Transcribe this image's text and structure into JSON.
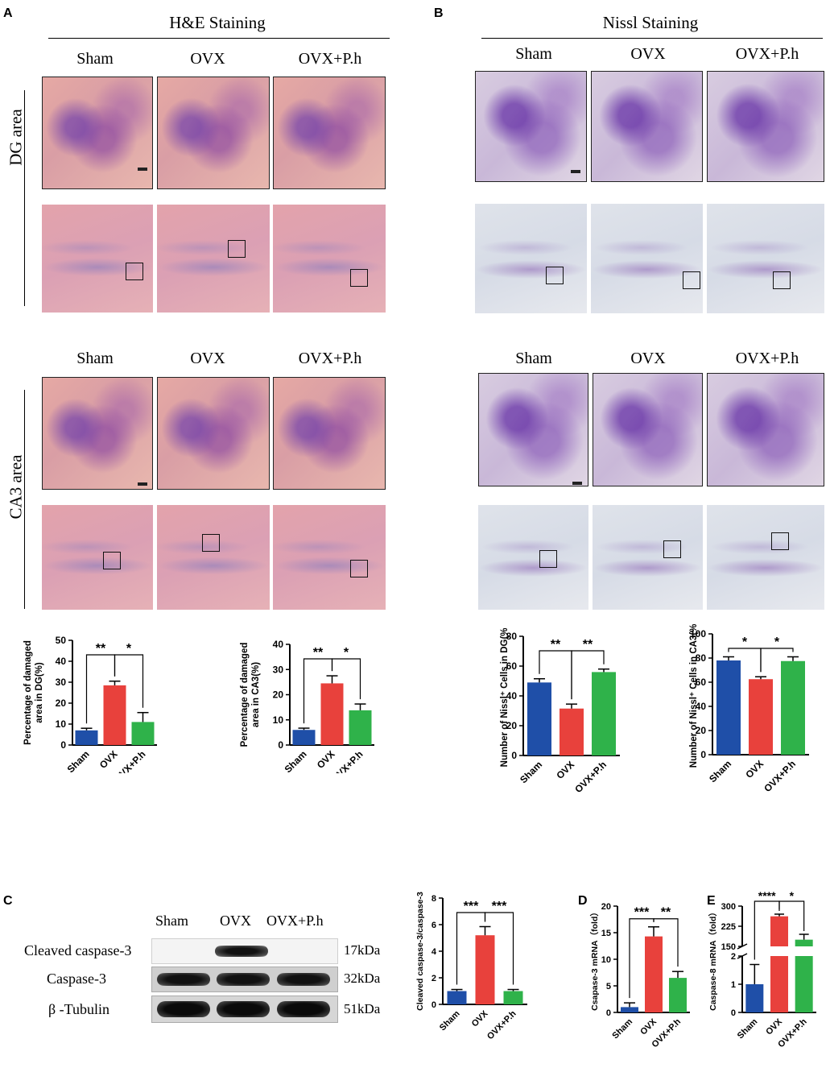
{
  "panels": {
    "A": "A",
    "B": "B",
    "C": "C",
    "D": "D",
    "E": "E"
  },
  "he": {
    "title": "H&E Staining",
    "groups": [
      "Sham",
      "OVX",
      "OVX+P.h"
    ],
    "row1_label": "DG area",
    "row2_label": "CA3 area"
  },
  "nissl": {
    "title": "Nissl Staining",
    "groups": [
      "Sham",
      "OVX",
      "OVX+P.h"
    ]
  },
  "blot": {
    "lanes": [
      "Sham",
      "OVX",
      "OVX+P.h"
    ],
    "rows": [
      {
        "label": "Cleaved caspase-3",
        "kda": "17kDa"
      },
      {
        "label": "Caspase-3",
        "kda": "32kDa"
      },
      {
        "label": "β -Tubulin",
        "kda": "51kDa"
      }
    ]
  },
  "colors": {
    "sham": "#1f4fa8",
    "ovx": "#e8413c",
    "oph": "#2fb24a"
  },
  "chart_data": [
    {
      "id": "he_dg",
      "type": "bar",
      "categories": [
        "Sham",
        "OVX",
        "OVX+P.h"
      ],
      "values": [
        7,
        28.5,
        11
      ],
      "errors": [
        1,
        2,
        4.5
      ],
      "ylabel": [
        "Percentage of damaged",
        "area in DG(%)"
      ],
      "ylim": [
        0,
        50
      ],
      "yticks": [
        "0",
        "10",
        "20",
        "30",
        "40",
        "50"
      ],
      "sig": [
        {
          "from": 0,
          "to": 1,
          "text": "**"
        },
        {
          "from": 1,
          "to": 2,
          "text": "*"
        }
      ]
    },
    {
      "id": "he_ca3",
      "type": "bar",
      "categories": [
        "Sham",
        "OVX",
        "OVX+P.h"
      ],
      "values": [
        6,
        24.5,
        13.8
      ],
      "errors": [
        0.7,
        3,
        2.5
      ],
      "ylabel": [
        "Percentage of damaged",
        "area in CA3(%)"
      ],
      "ylim": [
        0,
        40
      ],
      "yticks": [
        "0",
        "10",
        "20",
        "30",
        "40"
      ],
      "sig": [
        {
          "from": 0,
          "to": 1,
          "text": "**"
        },
        {
          "from": 1,
          "to": 2,
          "text": "*"
        }
      ]
    },
    {
      "id": "nissl_dg",
      "type": "bar",
      "categories": [
        "Sham",
        "OVX",
        "OVX+P.h"
      ],
      "values": [
        49,
        31.5,
        56
      ],
      "errors": [
        2.5,
        3,
        2
      ],
      "ylabel": [
        "Number of Nissl⁺ Cells in DG(%)"
      ],
      "ylim": [
        0,
        80
      ],
      "yticks": [
        "0",
        "20",
        "40",
        "60",
        "80"
      ],
      "sig": [
        {
          "from": 0,
          "to": 1,
          "text": "**"
        },
        {
          "from": 1,
          "to": 2,
          "text": "**"
        }
      ]
    },
    {
      "id": "nissl_ca3",
      "type": "bar",
      "categories": [
        "Sham",
        "OVX",
        "OVX+P.h"
      ],
      "values": [
        78,
        62.5,
        77.5
      ],
      "errors": [
        3,
        2,
        3.5
      ],
      "ylabel": [
        "Number of Nissl⁺ Cells in CA3(%)"
      ],
      "ylim": [
        0,
        100
      ],
      "yticks": [
        "0",
        "20",
        "40",
        "60",
        "80",
        "100"
      ],
      "sig": [
        {
          "from": 0,
          "to": 1,
          "text": "*"
        },
        {
          "from": 1,
          "to": 2,
          "text": "*"
        }
      ]
    },
    {
      "id": "cleaved",
      "type": "bar",
      "categories": [
        "Sham",
        "OVX",
        "OVX+P.h"
      ],
      "values": [
        1,
        5.2,
        1
      ],
      "errors": [
        0.12,
        0.65,
        0.12
      ],
      "ylabel": [
        "Cleaved caspase-3/caspase-3"
      ],
      "ylim": [
        0,
        8
      ],
      "yticks": [
        "0",
        "2",
        "4",
        "6",
        "8"
      ],
      "sig": [
        {
          "from": 0,
          "to": 1,
          "text": "***"
        },
        {
          "from": 1,
          "to": 2,
          "text": "***"
        }
      ]
    },
    {
      "id": "casp3_mrna",
      "type": "bar",
      "categories": [
        "Sham",
        "OVX",
        "OVX+P.h"
      ],
      "values": [
        1,
        14.3,
        6.5
      ],
      "errors": [
        0.8,
        1.8,
        1.2
      ],
      "ylabel": [
        "Csapase-3 mRNA（fold）"
      ],
      "ylim": [
        0,
        20
      ],
      "yticks": [
        "0",
        "5",
        "10",
        "15",
        "20"
      ],
      "sig": [
        {
          "from": 0,
          "to": 1,
          "text": "***"
        },
        {
          "from": 1,
          "to": 2,
          "text": "**"
        }
      ]
    },
    {
      "id": "casp8_mrna",
      "type": "bar",
      "broken_axis": true,
      "categories": [
        "Sham",
        "OVX",
        "OVX+P.h"
      ],
      "values": [
        1,
        262,
        175
      ],
      "errors": [
        0.7,
        8,
        20
      ],
      "ylabel": [
        "Caspase-8 mRNA（fold）"
      ],
      "ylim_lower": [
        0,
        2
      ],
      "ylim_upper": [
        150,
        300
      ],
      "yticks": [
        "0",
        "1",
        "2",
        "150",
        "225",
        "300"
      ],
      "sig": [
        {
          "from": 0,
          "to": 1,
          "text": "****"
        },
        {
          "from": 1,
          "to": 2,
          "text": "*"
        }
      ]
    }
  ]
}
